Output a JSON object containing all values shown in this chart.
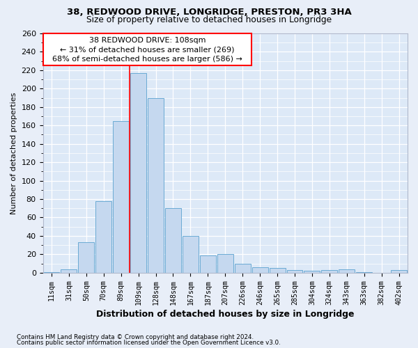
{
  "title1": "38, REDWOOD DRIVE, LONGRIDGE, PRESTON, PR3 3HA",
  "title2": "Size of property relative to detached houses in Longridge",
  "xlabel": "Distribution of detached houses by size in Longridge",
  "ylabel": "Number of detached properties",
  "categories": [
    "11sqm",
    "31sqm",
    "50sqm",
    "70sqm",
    "89sqm",
    "109sqm",
    "128sqm",
    "148sqm",
    "167sqm",
    "187sqm",
    "207sqm",
    "226sqm",
    "246sqm",
    "265sqm",
    "285sqm",
    "304sqm",
    "324sqm",
    "343sqm",
    "363sqm",
    "382sqm",
    "402sqm"
  ],
  "values": [
    1,
    4,
    33,
    78,
    165,
    217,
    190,
    70,
    40,
    19,
    20,
    10,
    6,
    5,
    3,
    2,
    3,
    4,
    1,
    0,
    3
  ],
  "bar_color": "#c5d8ef",
  "bar_edgecolor": "#6aaad4",
  "annotation_label": "38 REDWOOD DRIVE: 108sqm",
  "annotation_line1": "← 31% of detached houses are smaller (269)",
  "annotation_line2": "68% of semi-detached houses are larger (586) →",
  "footnote1": "Contains HM Land Registry data © Crown copyright and database right 2024.",
  "footnote2": "Contains public sector information licensed under the Open Government Licence v3.0.",
  "plot_bg_color": "#dde9f7",
  "grid_color": "#ffffff",
  "fig_bg": "#e8eef8",
  "ylim_max": 260,
  "yticks": [
    0,
    20,
    40,
    60,
    80,
    100,
    120,
    140,
    160,
    180,
    200,
    220,
    240,
    260
  ],
  "red_line_bin_index": 5
}
